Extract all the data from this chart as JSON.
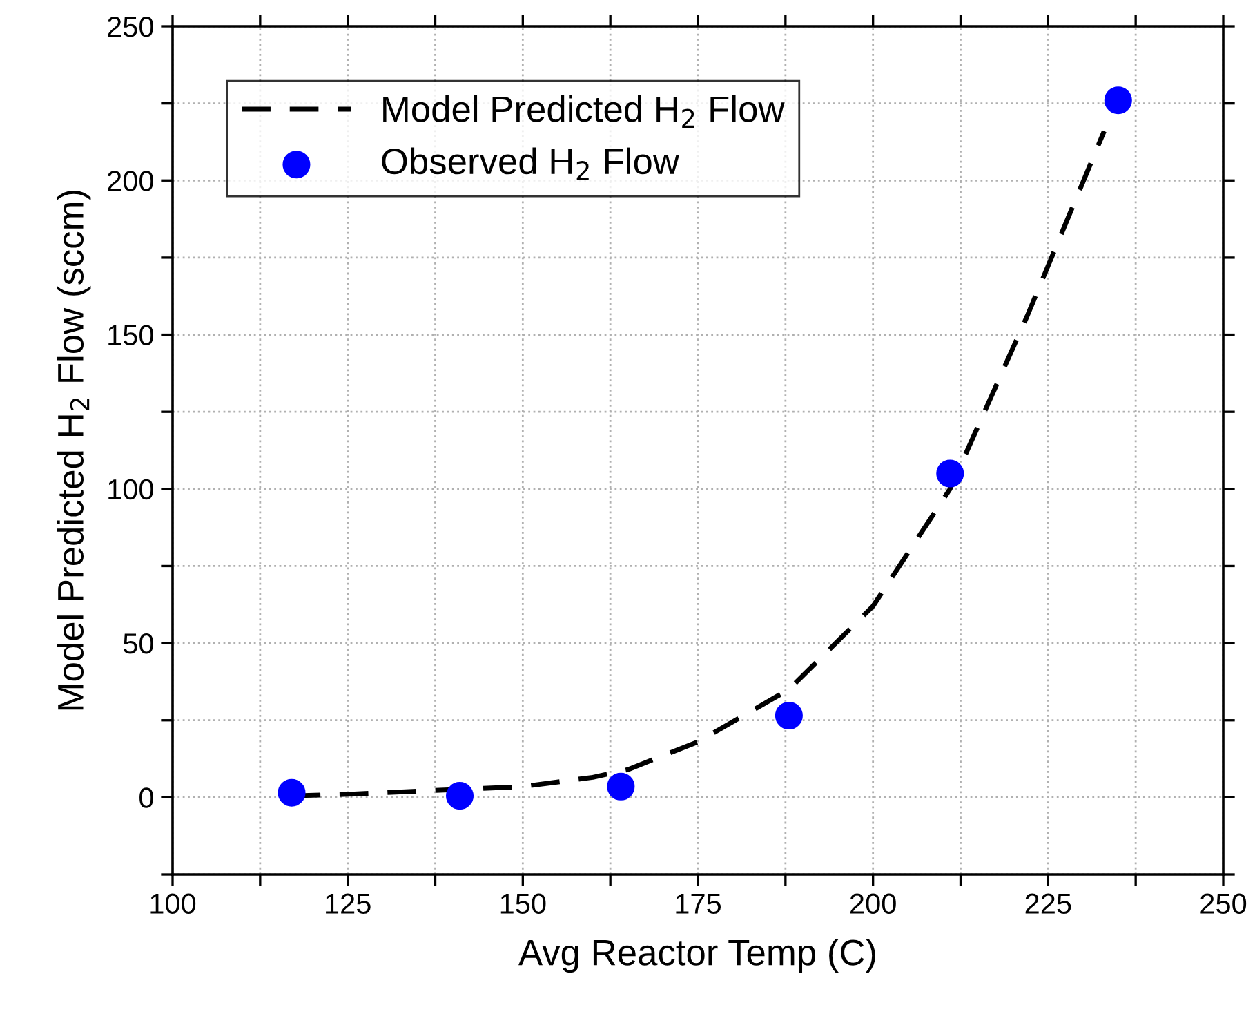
{
  "chart_data": {
    "type": "scatter",
    "xlabel": "Avg Reactor Temp (C)",
    "ylabel": "Model Predicted H$_{2}$ Flow (sccm)",
    "xlim": [
      100,
      250
    ],
    "ylim": [
      -25,
      250
    ],
    "xticks": [
      100,
      {
        "value": 112.5,
        "label": null
      },
      125,
      {
        "value": 137.5,
        "label": null
      },
      150,
      {
        "value": 162.5,
        "label": null
      },
      175,
      {
        "value": 187.5,
        "label": null
      },
      200,
      {
        "value": 212.5,
        "label": null
      },
      225,
      {
        "value": 237.5,
        "label": null
      },
      250
    ],
    "yticks": [
      {
        "value": -25,
        "label": null
      },
      0,
      {
        "value": 25,
        "label": null
      },
      50,
      {
        "value": 75,
        "label": null
      },
      100,
      {
        "value": 125,
        "label": null
      },
      150,
      {
        "value": 175,
        "label": null
      },
      200,
      {
        "value": 225,
        "label": null
      },
      250
    ],
    "grid": true,
    "legend": "top left",
    "series": [
      {
        "name": "Model Predicted H$_{2}$ Flow",
        "type": "line",
        "line_style": "dashed",
        "marker": "none",
        "color": "#000000",
        "x": [
          117,
          125,
          140,
          150,
          160,
          165,
          175,
          188,
          200,
          211,
          222,
          233
        ],
        "values": [
          0.5,
          1,
          2.5,
          3.5,
          6.5,
          9,
          18,
          35,
          62,
          100,
          156,
          216
        ]
      },
      {
        "name": "Observed H$_{2}$ Flow",
        "marker": "circle",
        "color": "#0000ff",
        "x": [
          117,
          141,
          164,
          188,
          211,
          235
        ],
        "values": [
          1.5,
          0.5,
          3.5,
          26.5,
          105,
          226
        ]
      }
    ]
  }
}
